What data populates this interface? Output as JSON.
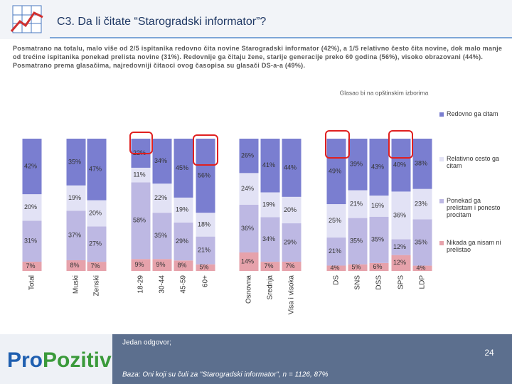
{
  "chart_data": {
    "type": "bar",
    "stacked": true,
    "title": "C3. Da li čitate “Starogradski informator”?",
    "subtitle": "Posmatrano na totalu, malo više od 2/5 ispitanika redovno čita novine Starogradski informator (42%), a 1/5 relativno često čita novine, dok malo manje od trećine ispitanika ponekad prelista novine (31%). Redovnije ga čitaju žene, starije generacije preko 60 godina (56%), visoko obrazovani (44%). Posmatrano prema glasačima, najredovniji čitaoci ovog časopisa su glasači DS-a-a (49%).",
    "annotation": "Glasao bi na opštinskim izborima",
    "categories": [
      "Total",
      "Muski",
      "Zenski",
      "18-29",
      "30-44",
      "45-59",
      "60+",
      "Osnovna",
      "Srednja",
      "Visa i visoka",
      "DS",
      "SNS",
      "DSS",
      "SPS",
      "LDP"
    ],
    "series": [
      {
        "name": "Redovno ga citam",
        "color": "#7a7ed0",
        "values": [
          42,
          35,
          47,
          22,
          34,
          45,
          56,
          26,
          41,
          44,
          49,
          39,
          43,
          40,
          38
        ],
        "value_labels": [
          "42%",
          "35%",
          "47%",
          "22%",
          "34%",
          "45%",
          "56%",
          "26%",
          "41%",
          "44%",
          "49%",
          "39%",
          "43%",
          "40%",
          "38%"
        ]
      },
      {
        "name": "Relativno cesto ga citam",
        "color": "#e2e2f5",
        "values": [
          20,
          19,
          20,
          11,
          22,
          19,
          18,
          24,
          19,
          20,
          25,
          21,
          16,
          36,
          23
        ],
        "value_labels": [
          "20%",
          "19%",
          "20%",
          "11%",
          "22%",
          "19%",
          "18%",
          "24%",
          "19%",
          "20%",
          "25%",
          "21%",
          "16%",
          "36%",
          "23%"
        ]
      },
      {
        "name": "Ponekad ga prelistam i ponesto procitam",
        "color": "#bdb8e3",
        "values": [
          31,
          37,
          27,
          58,
          35,
          29,
          21,
          36,
          34,
          29,
          21,
          35,
          35,
          12,
          35
        ],
        "value_labels": [
          "31%",
          "37%",
          "27%",
          "58%",
          "35%",
          "29%",
          "21%",
          "36%",
          "34%",
          "29%",
          "21%",
          "35%",
          "35%",
          "12%",
          "35%"
        ]
      },
      {
        "name": "Nikada ga nisam ni prelistao",
        "color": "#e6a2ab",
        "values": [
          7,
          8,
          7,
          9,
          9,
          8,
          5,
          14,
          7,
          7,
          4,
          5,
          6,
          12,
          4
        ],
        "value_labels": [
          "7%",
          "8%",
          "7%",
          "9%",
          "9%",
          "8%",
          "5%",
          "14%",
          "7%",
          "7%",
          "4%",
          "5%",
          "6%",
          "12%",
          "4%"
        ]
      }
    ]
  },
  "footer": {
    "line1": "Jedan odgovor;",
    "line2": "Baza: Oni koji su čuli za \"Starogradski informator\", n = 1126, 87%"
  },
  "logo": {
    "part1": "Pro",
    "part2": "Pozitiv"
  },
  "page_number": "24"
}
